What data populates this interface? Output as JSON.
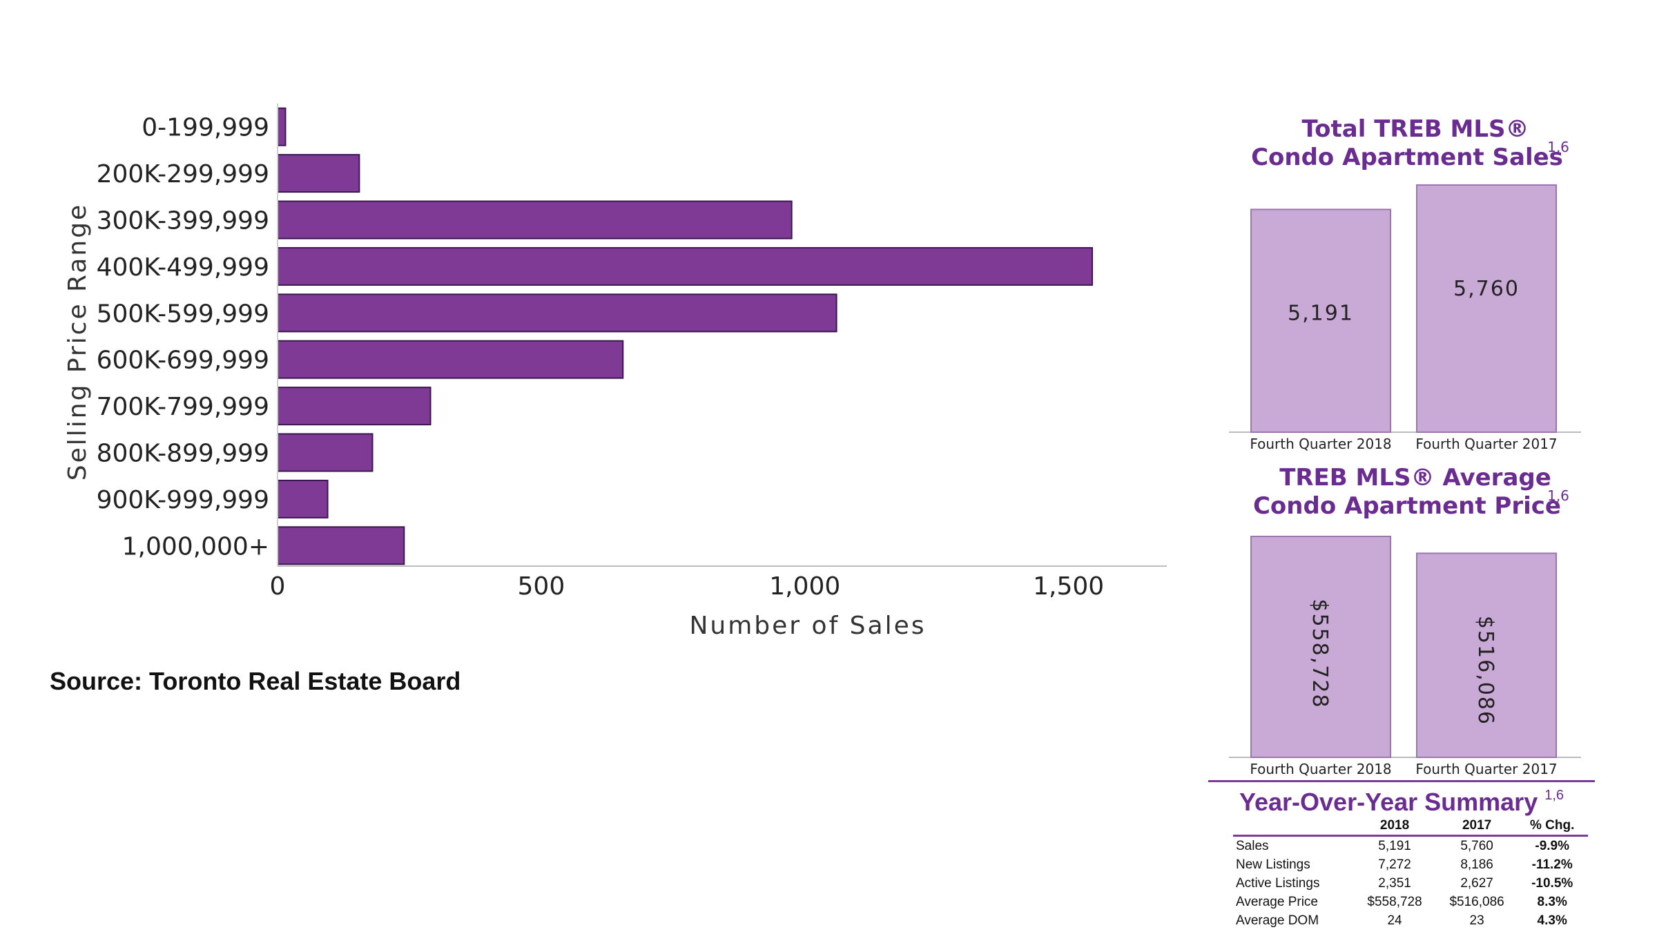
{
  "chart_data": [
    {
      "type": "bar",
      "orientation": "horizontal",
      "categories": [
        "0-199,999",
        "200K-299,999",
        "300K-399,999",
        "400K-499,999",
        "500K-599,999",
        "600K-699,999",
        "700K-799,999",
        "800K-899,999",
        "900K-999,999",
        "1,000,000+"
      ],
      "values": [
        15,
        155,
        975,
        1545,
        1060,
        655,
        290,
        180,
        95,
        240
      ],
      "xlabel": "Number of Sales",
      "ylabel": "Selling Price Range",
      "xlim": [
        0,
        1680
      ],
      "xticks": [
        0,
        500,
        1000,
        1500
      ],
      "xtick_labels": [
        "0",
        "500",
        "1,000",
        "1,500"
      ],
      "color": "#7e3a95",
      "grid": false
    },
    {
      "type": "bar",
      "title_line1": "Total TREB MLS®",
      "title_line2": "Condo Apartment Sales",
      "title_sup": "1,6",
      "categories": [
        "Fourth Quarter 2018",
        "Fourth Quarter 2017"
      ],
      "values": [
        5191,
        5760
      ],
      "value_labels": [
        "5,191",
        "5,760"
      ],
      "color": "#c9a9d6"
    },
    {
      "type": "bar",
      "title_line1": "TREB MLS® Average",
      "title_line2": "Condo Apartment Price",
      "title_sup": "1,6",
      "categories": [
        "Fourth Quarter 2018",
        "Fourth Quarter 2017"
      ],
      "values": [
        558728,
        516086
      ],
      "value_labels": [
        "$558,728",
        "$516,086"
      ],
      "color": "#c9a9d6"
    }
  ],
  "source": "Source: Toronto Real Estate Board",
  "summary": {
    "title": "Year-Over-Year Summary",
    "title_sup": "1,6",
    "headers": [
      "",
      "2018",
      "2017",
      "% Chg."
    ],
    "rows": [
      [
        "Sales",
        "5,191",
        "5,760",
        "-9.9%"
      ],
      [
        "New Listings",
        "7,272",
        "8,186",
        "-11.2%"
      ],
      [
        "Active Listings",
        "2,351",
        "2,627",
        "-10.5%"
      ],
      [
        "Average Price",
        "$558,728",
        "$516,086",
        "8.3%"
      ],
      [
        "Average DOM",
        "24",
        "23",
        "4.3%"
      ]
    ]
  },
  "colors": {
    "bar": "#7e3a95",
    "light_bar": "#c9a9d6",
    "title_purple": "#6a2c91"
  }
}
